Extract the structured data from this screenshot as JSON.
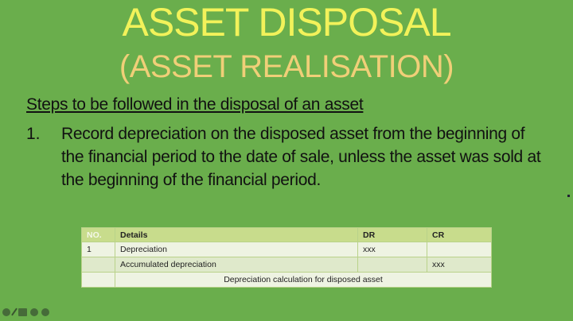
{
  "slide": {
    "title": "ASSET DISPOSAL",
    "subtitle": "(ASSET REALISATION)",
    "heading": "Steps to be followed in the disposal of an asset",
    "steps": [
      {
        "number": "1.",
        "text": "Record depreciation on the disposed asset from the beginning of the financial period to the date of sale, unless the asset was sold at the beginning of the financial period."
      }
    ]
  },
  "table": {
    "headers": [
      "NO.",
      "Details",
      "DR",
      "CR"
    ],
    "rows": [
      [
        "1",
        "Depreciation",
        "xxx",
        ""
      ],
      [
        "",
        "Accumulated depreciation",
        "",
        "xxx"
      ]
    ],
    "caption": "Depreciation calculation for disposed asset"
  },
  "colors": {
    "background": "#6aae4c",
    "title": "#f2f25a",
    "subtitle": "#f0cf78",
    "table_header": "#c8dc8c"
  },
  "toolbar": {
    "icons": [
      "previous-icon",
      "pen-icon",
      "slides-icon",
      "menu-icon",
      "next-icon"
    ]
  }
}
